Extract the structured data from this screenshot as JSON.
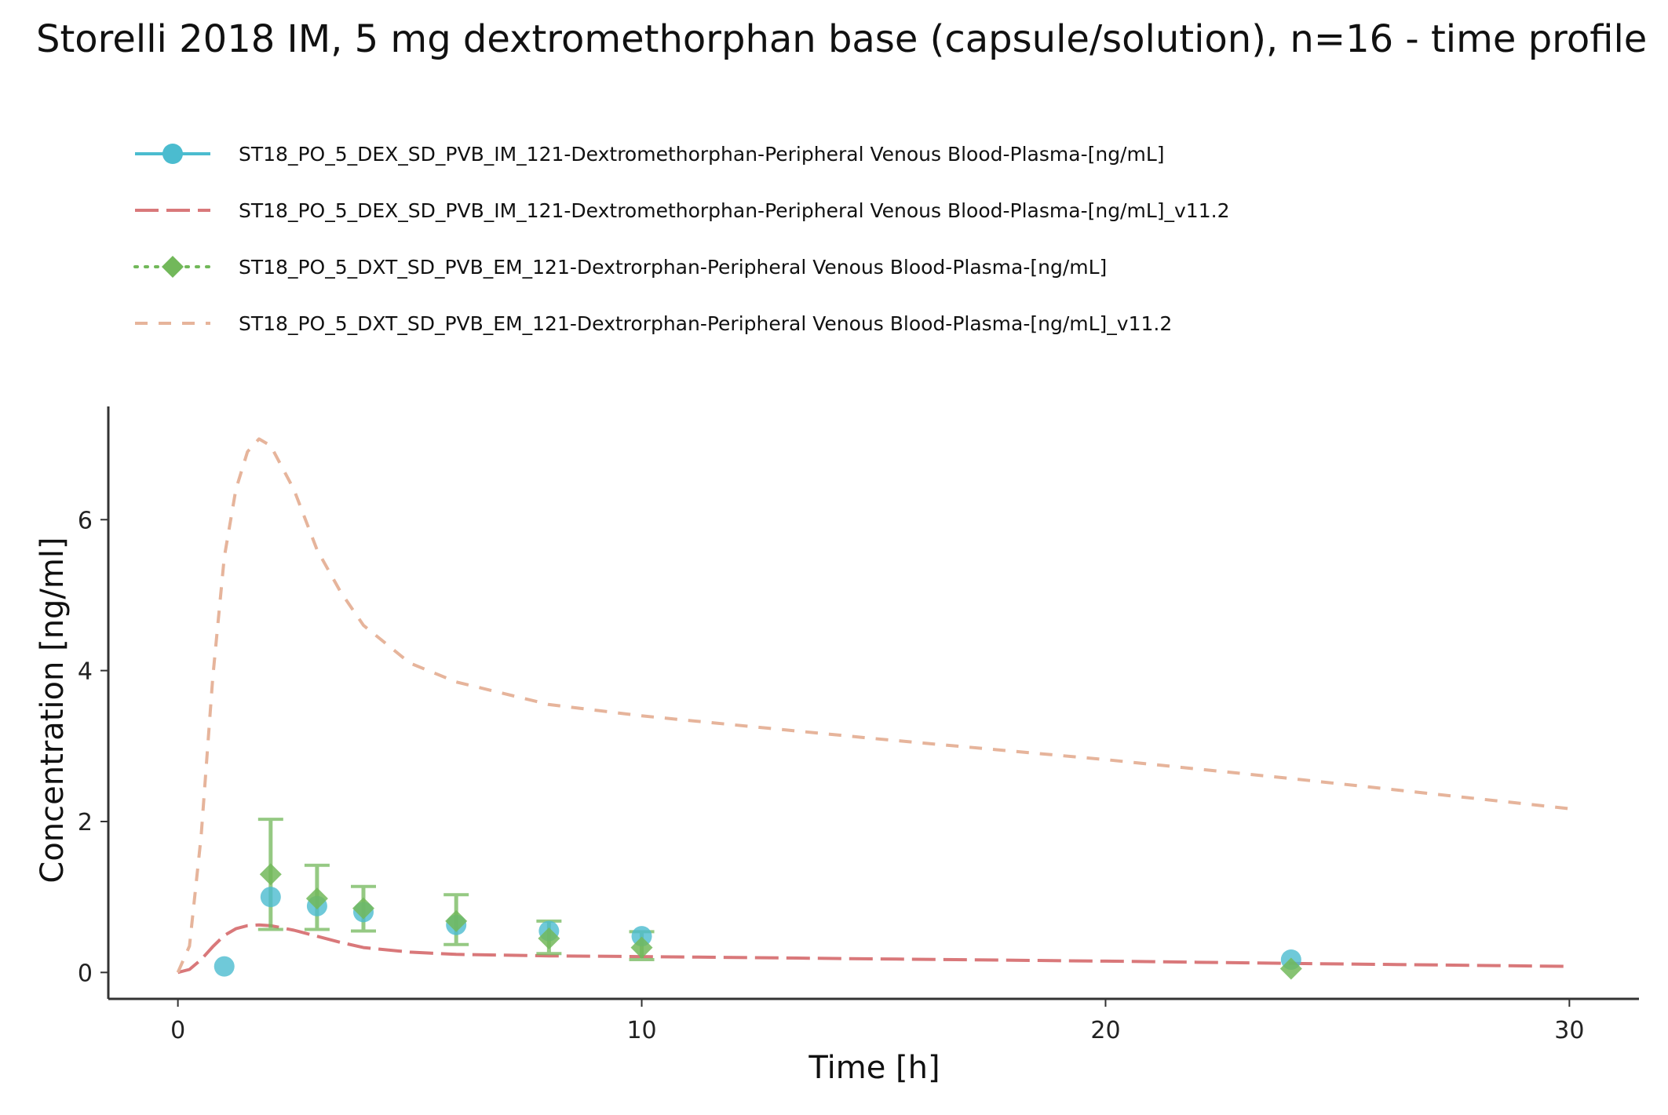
{
  "chart_data": {
    "type": "line",
    "title": "Storelli 2018 IM, 5 mg dextromethorphan base (capsule/solution), n=16 - time profile",
    "xlabel": "Time [h]",
    "ylabel": "Concentration [ng/ml]",
    "xlim": [
      -1.5,
      31.5
    ],
    "ylim": [
      -0.35,
      7.5
    ],
    "x_ticks": [
      0,
      10,
      20,
      30
    ],
    "y_ticks": [
      0,
      2,
      4,
      6
    ],
    "grid": false,
    "legend_position": "top-left",
    "series": [
      {
        "name": "ST18_PO_5_DEX_SD_PVB_IM_121-Dextromethorphan-Peripheral Venous Blood-Plasma-[ng/mL]",
        "kind": "observed",
        "marker": "circle",
        "color": "#4bbccf",
        "x": [
          1,
          2,
          3,
          4,
          6,
          8,
          10,
          24
        ],
        "y": [
          0.08,
          1.0,
          0.88,
          0.8,
          0.63,
          0.55,
          0.48,
          0.17
        ]
      },
      {
        "name": "ST18_PO_5_DEX_SD_PVB_IM_121-Dextromethorphan-Peripheral Venous Blood-Plasma-[ng/mL]_v11.2",
        "kind": "simulated",
        "dash": "longdash",
        "color": "#d9787a",
        "x": [
          0,
          0.25,
          0.5,
          0.75,
          1.0,
          1.25,
          1.5,
          1.75,
          2.0,
          2.5,
          3.0,
          3.5,
          4.0,
          5.0,
          6.0,
          8.0,
          10.0,
          15.0,
          20.0,
          24.0,
          30.0
        ],
        "y": [
          0,
          0.04,
          0.17,
          0.34,
          0.49,
          0.58,
          0.62,
          0.63,
          0.62,
          0.56,
          0.48,
          0.4,
          0.33,
          0.27,
          0.24,
          0.22,
          0.21,
          0.18,
          0.15,
          0.12,
          0.08
        ]
      },
      {
        "name": "ST18_PO_5_DXT_SD_PVB_EM_121-Dextrorphan-Peripheral Venous Blood-Plasma-[ng/mL]",
        "kind": "observed",
        "marker": "diamond",
        "color": "#72b85a",
        "x": [
          2,
          3,
          4,
          6,
          8,
          10,
          24
        ],
        "y": [
          1.3,
          0.98,
          0.85,
          0.68,
          0.45,
          0.33,
          0.05
        ],
        "err_low": [
          0.57,
          0.57,
          0.55,
          0.37,
          0.25,
          0.17,
          0.05
        ],
        "err_high": [
          2.03,
          1.42,
          1.14,
          1.03,
          0.68,
          0.54,
          0.05
        ]
      },
      {
        "name": "ST18_PO_5_DXT_SD_PVB_EM_121-Dextrorphan-Peripheral Venous Blood-Plasma-[ng/mL]_v11.2",
        "kind": "simulated",
        "dash": "dashed",
        "color": "#e6b49b",
        "x": [
          0,
          0.25,
          0.5,
          0.75,
          1.0,
          1.25,
          1.5,
          1.75,
          2.0,
          2.5,
          3.0,
          3.5,
          4.0,
          5.0,
          6.0,
          8.0,
          10.0,
          15.0,
          20.0,
          24.0,
          30.0
        ],
        "y": [
          0,
          0.35,
          1.8,
          3.9,
          5.5,
          6.4,
          6.9,
          7.07,
          6.98,
          6.4,
          5.6,
          5.05,
          4.6,
          4.1,
          3.85,
          3.55,
          3.4,
          3.1,
          2.82,
          2.57,
          2.17
        ]
      }
    ]
  }
}
